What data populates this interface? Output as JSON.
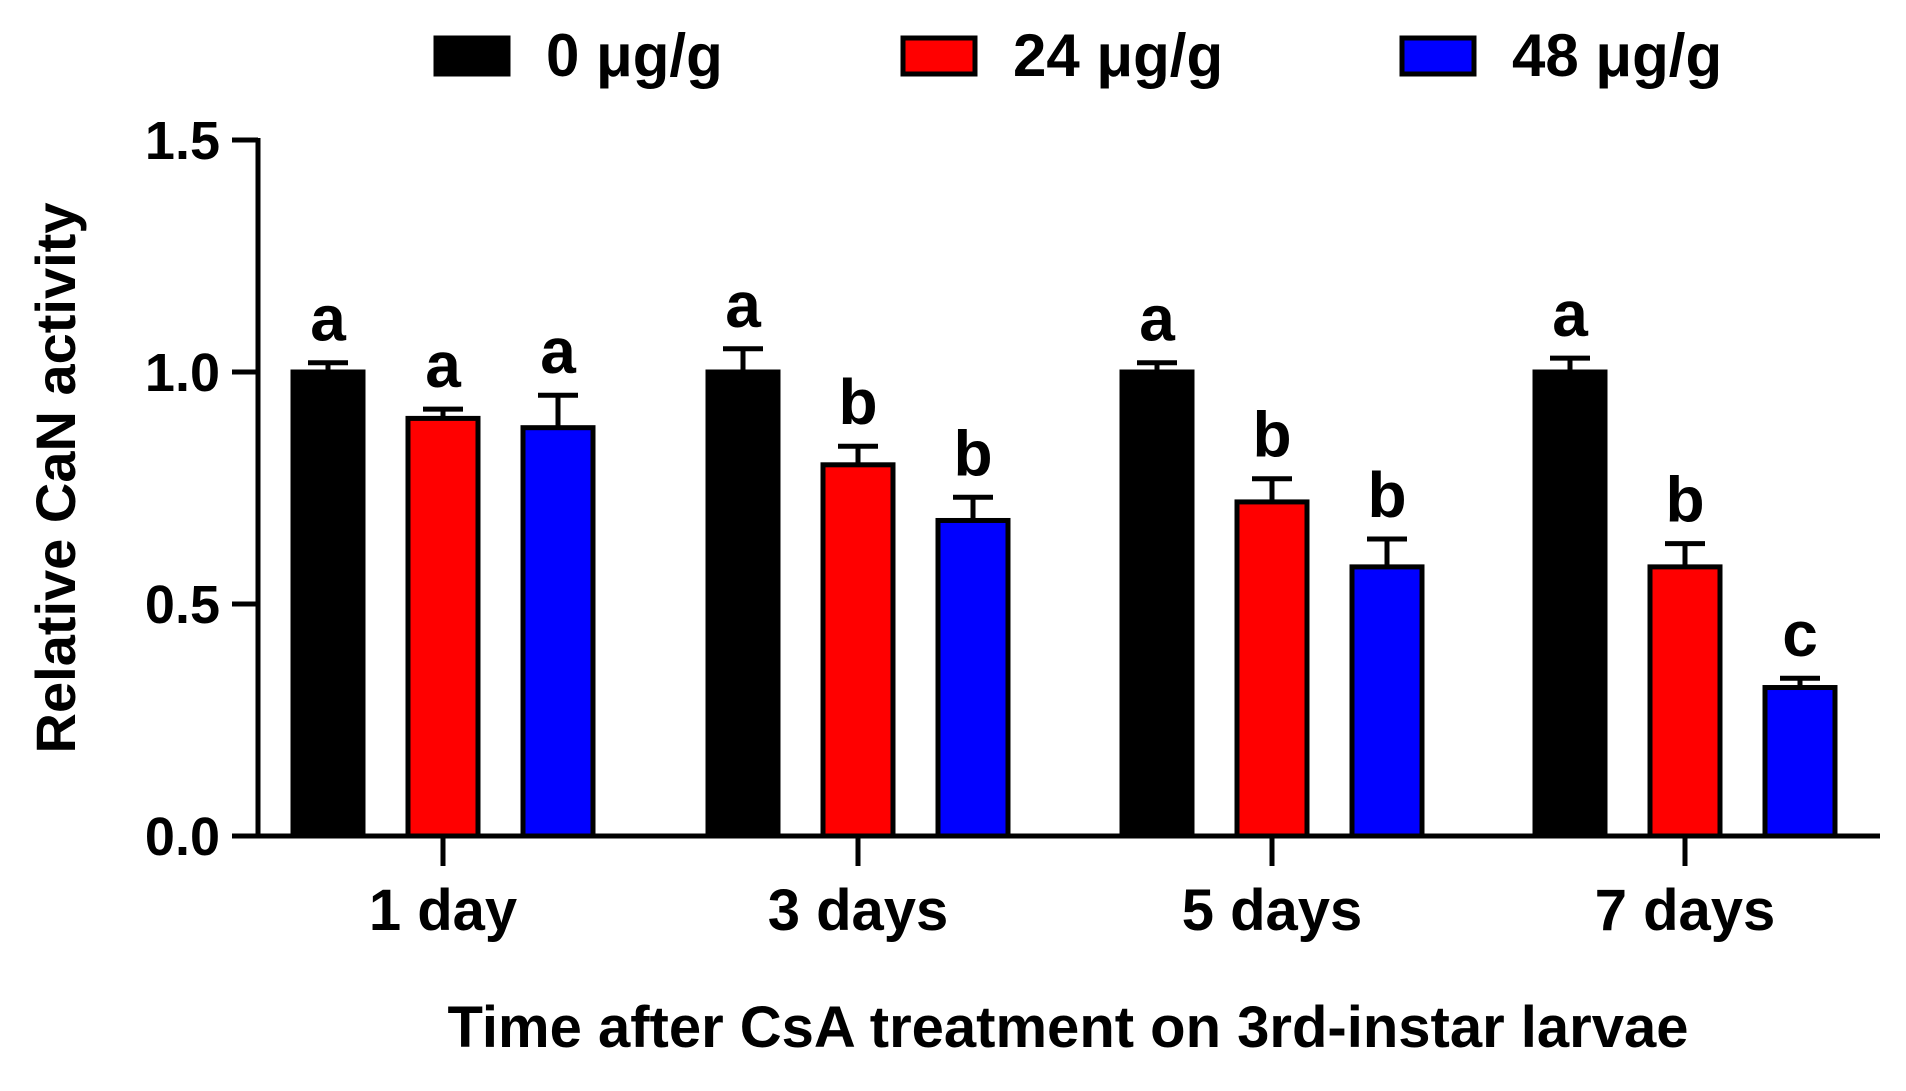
{
  "chart_data": {
    "type": "bar",
    "title": "",
    "xlabel": "Time after CsA treatment on 3rd-instar larvae",
    "ylabel": "Relative CaN activity",
    "ylim": [
      0,
      1.5
    ],
    "yticks": [
      0.0,
      0.5,
      1.0,
      1.5
    ],
    "ytick_labels": [
      "0.0",
      "0.5",
      "1.0",
      "1.5"
    ],
    "categories": [
      "1 day",
      "3 days",
      "5 days",
      "7 days"
    ],
    "legend_position": "top",
    "series": [
      {
        "name": "0 μg/g",
        "color": "#000000",
        "values": [
          1.0,
          1.0,
          1.0,
          1.0
        ],
        "errors": [
          0.02,
          0.05,
          0.02,
          0.03
        ],
        "labels": [
          "a",
          "a",
          "a",
          "a"
        ]
      },
      {
        "name": "24 μg/g",
        "color": "#ff0000",
        "values": [
          0.9,
          0.8,
          0.72,
          0.58
        ],
        "errors": [
          0.02,
          0.04,
          0.05,
          0.05
        ],
        "labels": [
          "a",
          "b",
          "b",
          "b"
        ]
      },
      {
        "name": "48 μg/g",
        "color": "#0000ff",
        "values": [
          0.88,
          0.68,
          0.58,
          0.32
        ],
        "errors": [
          0.07,
          0.05,
          0.06,
          0.02
        ],
        "labels": [
          "a",
          "b",
          "b",
          "c"
        ]
      }
    ]
  }
}
